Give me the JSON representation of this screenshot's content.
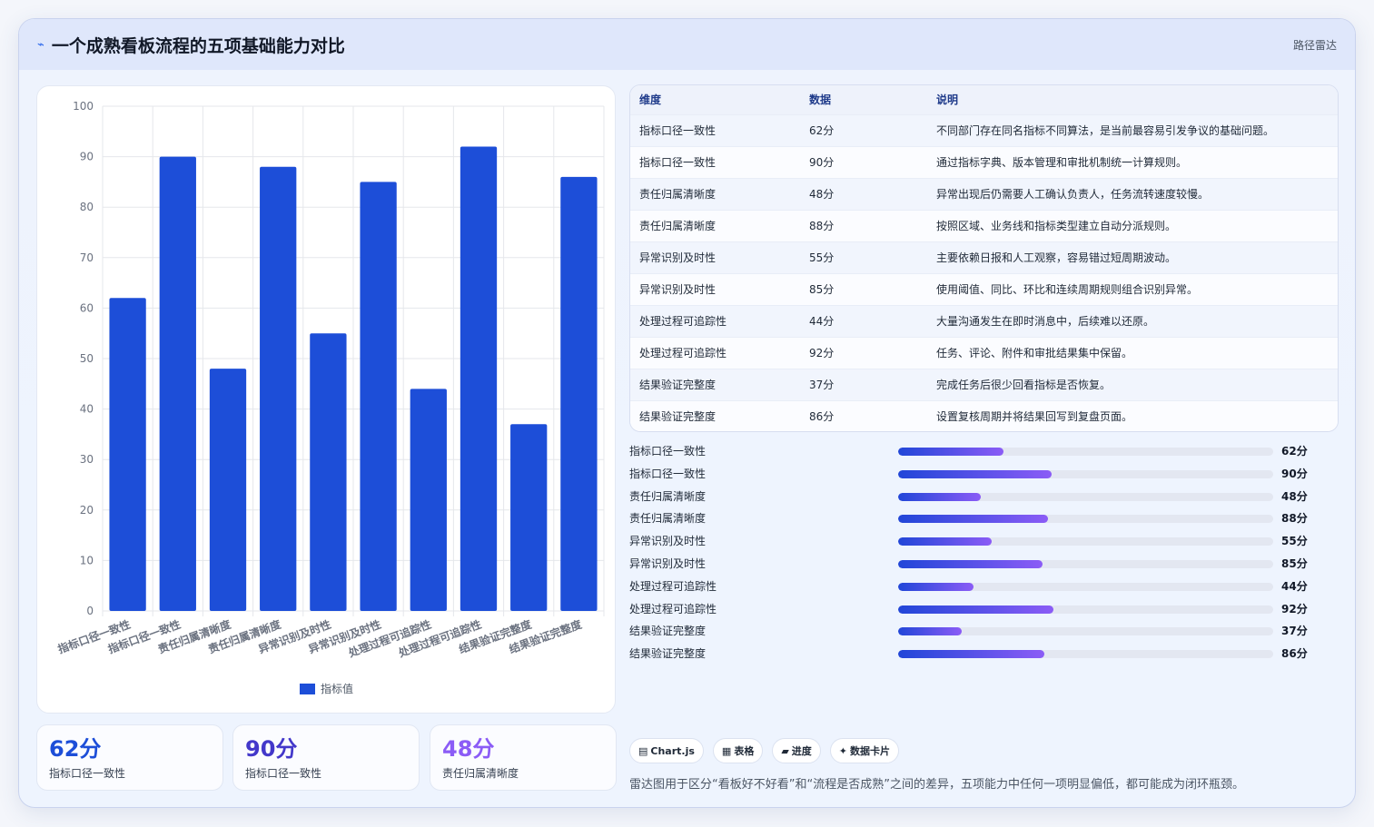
{
  "header": {
    "icon": "lightning-icon",
    "title": "一个成熟看板流程的五项基础能力对比",
    "badge": "路径雷达"
  },
  "chart_data": {
    "type": "bar",
    "categories": [
      "指标口径一致性",
      "指标口径一致性",
      "责任归属清晰度",
      "责任归属清晰度",
      "异常识别及时性",
      "异常识别及时性",
      "处理过程可追踪性",
      "处理过程可追踪性",
      "结果验证完整度",
      "结果验证完整度"
    ],
    "series": [
      {
        "name": "指标值",
        "values": [
          62,
          90,
          48,
          88,
          55,
          85,
          44,
          92,
          37,
          86
        ],
        "color": "#1d4ed8"
      }
    ],
    "ylim": [
      0,
      100
    ],
    "yticks": [
      0,
      10,
      20,
      30,
      40,
      50,
      60,
      70,
      80,
      90,
      100
    ],
    "grid": true,
    "legend": "bottom"
  },
  "table": {
    "headers": [
      "维度",
      "数据",
      "说明"
    ],
    "rows": [
      [
        "指标口径一致性",
        "62分",
        "不同部门存在同名指标不同算法，是当前最容易引发争议的基础问题。"
      ],
      [
        "指标口径一致性",
        "90分",
        "通过指标字典、版本管理和审批机制统一计算规则。"
      ],
      [
        "责任归属清晰度",
        "48分",
        "异常出现后仍需要人工确认负责人，任务流转速度较慢。"
      ],
      [
        "责任归属清晰度",
        "88分",
        "按照区域、业务线和指标类型建立自动分派规则。"
      ],
      [
        "异常识别及时性",
        "55分",
        "主要依赖日报和人工观察，容易错过短周期波动。"
      ],
      [
        "异常识别及时性",
        "85分",
        "使用阈值、同比、环比和连续周期规则组合识别异常。"
      ],
      [
        "处理过程可追踪性",
        "44分",
        "大量沟通发生在即时消息中，后续难以还原。"
      ],
      [
        "处理过程可追踪性",
        "92分",
        "任务、评论、附件和审批结果集中保留。"
      ],
      [
        "结果验证完整度",
        "37分",
        "完成任务后很少回看指标是否恢复。"
      ],
      [
        "结果验证完整度",
        "86分",
        "设置复核周期并将结果回写到复盘页面。"
      ]
    ]
  },
  "progress": [
    {
      "label": "指标口径一致性",
      "value": "62分",
      "fraction": 0.28
    },
    {
      "label": "指标口径一致性",
      "value": "90分",
      "fraction": 0.41
    },
    {
      "label": "责任归属清晰度",
      "value": "48分",
      "fraction": 0.22
    },
    {
      "label": "责任归属清晰度",
      "value": "88分",
      "fraction": 0.4
    },
    {
      "label": "异常识别及时性",
      "value": "55分",
      "fraction": 0.25
    },
    {
      "label": "异常识别及时性",
      "value": "85分",
      "fraction": 0.385
    },
    {
      "label": "处理过程可追踪性",
      "value": "44分",
      "fraction": 0.2
    },
    {
      "label": "处理过程可追踪性",
      "value": "92分",
      "fraction": 0.415
    },
    {
      "label": "结果验证完整度",
      "value": "37分",
      "fraction": 0.17
    },
    {
      "label": "结果验证完整度",
      "value": "86分",
      "fraction": 0.39
    }
  ],
  "stats": [
    {
      "value": "62分",
      "label": "指标口径一致性",
      "color": "#1d4ed8"
    },
    {
      "value": "90分",
      "label": "指标口径一致性",
      "color": "#4338ca"
    },
    {
      "value": "48分",
      "label": "责任归属清晰度",
      "color": "#8b5cf6"
    }
  ],
  "tags": [
    {
      "icon": "chart-icon",
      "glyph": "▤",
      "label": "Chart.js"
    },
    {
      "icon": "table-icon",
      "glyph": "▦",
      "label": "表格"
    },
    {
      "icon": "progress-icon",
      "glyph": "▰",
      "label": "进度"
    },
    {
      "icon": "card-icon",
      "glyph": "✦",
      "label": "数据卡片"
    }
  ],
  "note": "雷达图用于区分“看板好不好看”和“流程是否成熟”之间的差异，五项能力中任何一项明显偏低，都可能成为闭环瓶颈。"
}
